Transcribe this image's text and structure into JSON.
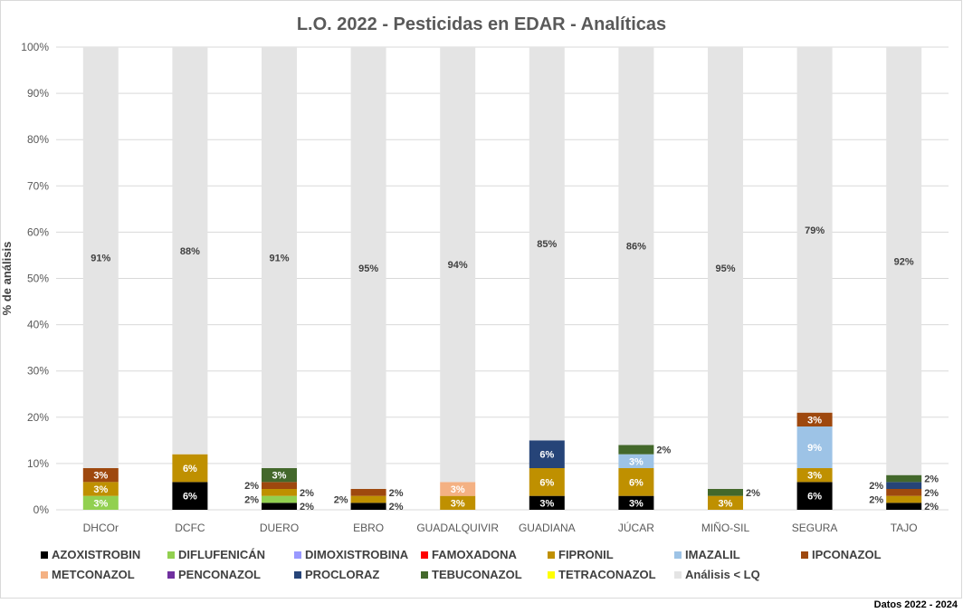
{
  "chart_data": {
    "type": "bar",
    "stacked": true,
    "title": "L.O. 2022 - Pesticidas en EDAR - Analíticas",
    "xlabel": "",
    "ylabel": "% de análisis",
    "ylim": [
      0,
      100
    ],
    "yticks": [
      "0%",
      "10%",
      "20%",
      "30%",
      "40%",
      "50%",
      "60%",
      "70%",
      "80%",
      "90%",
      "100%"
    ],
    "grid": true,
    "legend_position": "bottom",
    "categories": [
      "DHCOr",
      "DCFC",
      "DUERO",
      "EBRO",
      "GUADALQUIVIR",
      "GUADIANA",
      "JÚCAR",
      "MIÑO-SIL",
      "SEGURA",
      "TAJO"
    ],
    "series": [
      {
        "name": "AZOXISTROBIN",
        "color": "#000000",
        "values": [
          null,
          6,
          1.5,
          1.5,
          null,
          3,
          3,
          null,
          6,
          1.5
        ]
      },
      {
        "name": "DIFLUFENICÁN",
        "color": "#92d050",
        "values": [
          3,
          null,
          1.5,
          null,
          null,
          null,
          null,
          null,
          null,
          null
        ]
      },
      {
        "name": "DIMOXISTROBINA",
        "color": "#9999ff",
        "values": [
          null,
          null,
          null,
          null,
          null,
          null,
          null,
          null,
          null,
          null
        ]
      },
      {
        "name": "FAMOXADONA",
        "color": "#ff0000",
        "values": [
          null,
          null,
          null,
          null,
          null,
          null,
          null,
          null,
          null,
          null
        ]
      },
      {
        "name": "FIPRONIL",
        "color": "#bf9000",
        "values": [
          3,
          6,
          1.5,
          1.5,
          3,
          6,
          6,
          3,
          3,
          1.5
        ]
      },
      {
        "name": "IMAZALIL",
        "color": "#9dc3e6",
        "values": [
          null,
          null,
          null,
          null,
          null,
          null,
          3,
          null,
          9,
          null
        ]
      },
      {
        "name": "IPCONAZOL",
        "color": "#9e480e",
        "values": [
          3,
          null,
          1.5,
          1.5,
          null,
          null,
          null,
          null,
          3,
          1.5
        ]
      },
      {
        "name": "METCONAZOL",
        "color": "#f4b183",
        "values": [
          null,
          null,
          null,
          null,
          3,
          null,
          null,
          null,
          null,
          null
        ]
      },
      {
        "name": "PENCONAZOL",
        "color": "#7030a0",
        "values": [
          null,
          null,
          null,
          null,
          null,
          null,
          null,
          null,
          null,
          null
        ]
      },
      {
        "name": "PROCLORAZ",
        "color": "#264478",
        "values": [
          null,
          null,
          null,
          null,
          null,
          6,
          null,
          null,
          null,
          1.5
        ]
      },
      {
        "name": "TEBUCONAZOL",
        "color": "#43682b",
        "values": [
          null,
          null,
          3,
          null,
          null,
          null,
          2,
          1.5,
          null,
          1.5
        ]
      },
      {
        "name": "TETRACONAZOL",
        "color": "#ffff00",
        "values": [
          null,
          null,
          null,
          null,
          null,
          null,
          null,
          null,
          null,
          null
        ]
      },
      {
        "name": "Análisis < LQ",
        "color": "#e4e4e4",
        "values": [
          91,
          88,
          91,
          95,
          94,
          85,
          86,
          95,
          79,
          92
        ]
      }
    ]
  },
  "footer": "Datos 2022 - 2024"
}
